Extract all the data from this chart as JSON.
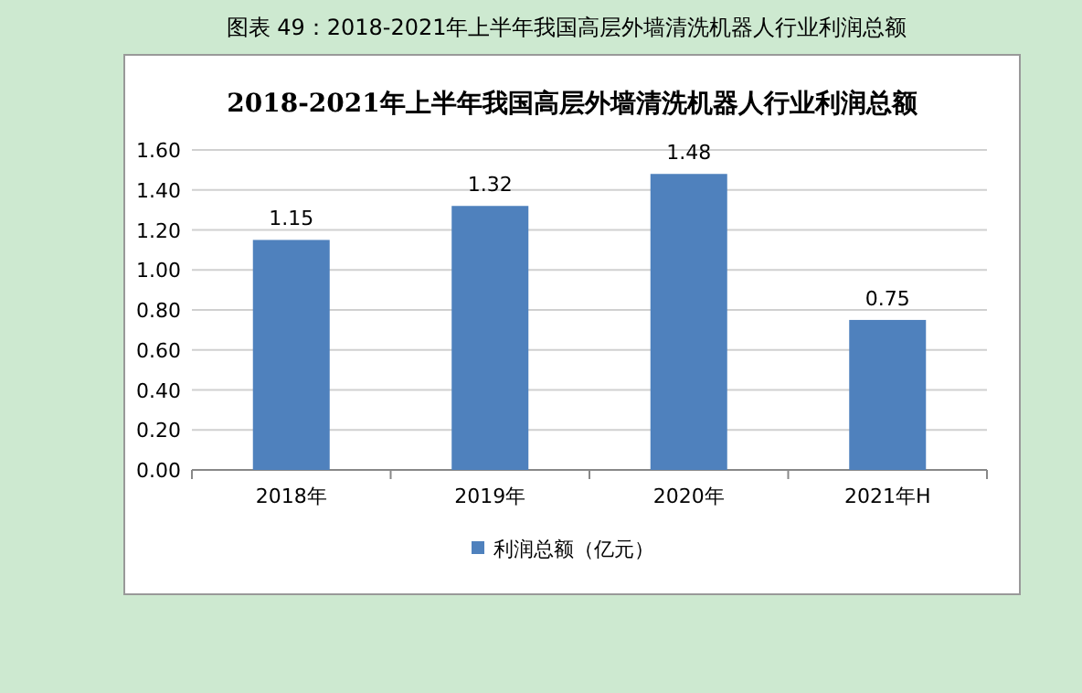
{
  "chart_data": {
    "type": "bar",
    "title": "2018-2021年上半年我国高层外墙清洗机器人行业利润总额",
    "annotations": [
      "图表 49：2018-2021年上半年我国高层外墙清洗机器人行业利润总额"
    ],
    "categories": [
      "2018年",
      "2019年",
      "2020年",
      "2021年H"
    ],
    "series": [
      {
        "name": "利润总额（亿元）",
        "color": "#4f81bd",
        "values": [
          1.15,
          1.32,
          1.48,
          0.75
        ]
      }
    ],
    "ylim": [
      0,
      1.6
    ],
    "yticks": [
      {
        "value": 0,
        "label": "0.00"
      },
      {
        "value": 0.2,
        "label": "0.20"
      },
      {
        "value": 0.4,
        "label": "0.40"
      },
      {
        "value": 0.6,
        "label": "0.60"
      },
      {
        "value": 0.8,
        "label": "0.80"
      },
      {
        "value": 1.0,
        "label": "1.00"
      },
      {
        "value": 1.2,
        "label": "1.20"
      },
      {
        "value": 1.4,
        "label": "1.40"
      },
      {
        "value": 1.6,
        "label": "1.60"
      }
    ],
    "grid": "y",
    "legend": "bottom",
    "data_labels": true
  }
}
